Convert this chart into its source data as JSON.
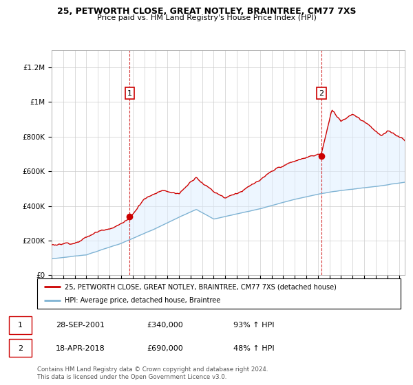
{
  "title_line1": "25, PETWORTH CLOSE, GREAT NOTLEY, BRAINTREE, CM77 7XS",
  "title_line2": "Price paid vs. HM Land Registry's House Price Index (HPI)",
  "ylabel_ticks": [
    "£0",
    "£200K",
    "£400K",
    "£600K",
    "£800K",
    "£1M",
    "£1.2M"
  ],
  "ytick_values": [
    0,
    200000,
    400000,
    600000,
    800000,
    1000000,
    1200000
  ],
  "ylim": [
    0,
    1300000
  ],
  "xlim_start": 1995.0,
  "xlim_end": 2025.5,
  "color_red": "#cc0000",
  "color_blue": "#7fb3d3",
  "color_shading": "#ddeeff",
  "sale1_x": 2001.74,
  "sale1_y": 340000,
  "sale1_label": "1",
  "sale2_x": 2018.29,
  "sale2_y": 690000,
  "sale2_label": "2",
  "legend_entry1": "25, PETWORTH CLOSE, GREAT NOTLEY, BRAINTREE, CM77 7XS (detached house)",
  "legend_entry2": "HPI: Average price, detached house, Braintree",
  "table_row1": [
    "1",
    "28-SEP-2001",
    "£340,000",
    "93% ↑ HPI"
  ],
  "table_row2": [
    "2",
    "18-APR-2018",
    "£690,000",
    "48% ↑ HPI"
  ],
  "footnote": "Contains HM Land Registry data © Crown copyright and database right 2024.\nThis data is licensed under the Open Government Licence v3.0.",
  "background_color": "#ffffff"
}
